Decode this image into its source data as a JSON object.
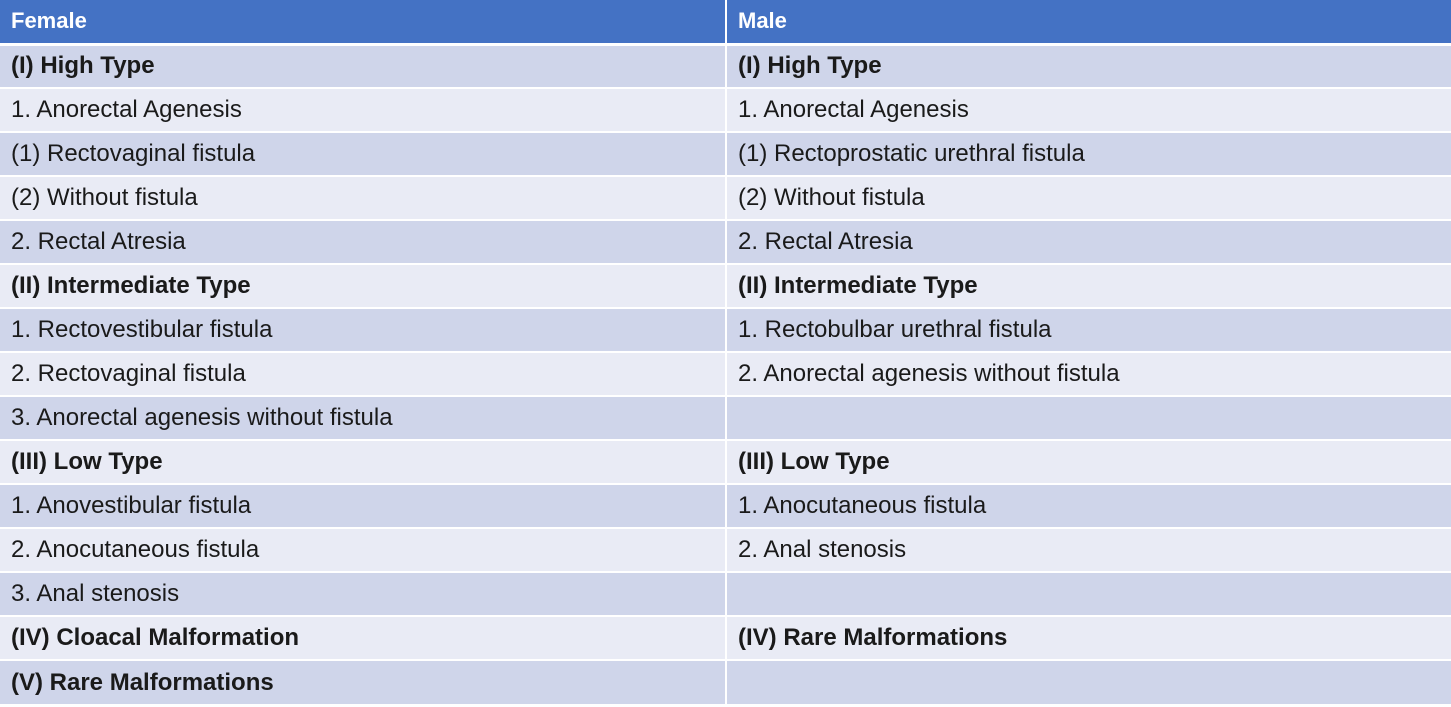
{
  "header": {
    "female": "Female",
    "male": "Male"
  },
  "rows": [
    {
      "female": "(I) High Type",
      "male": "(I) High Type"
    },
    {
      "female": "1. Anorectal Agenesis",
      "male": "1. Anorectal Agenesis"
    },
    {
      "female": "(1) Rectovaginal fistula",
      "male": "(1) Rectoprostatic urethral fistula"
    },
    {
      "female": "(2) Without fistula",
      "male": "(2) Without fistula"
    },
    {
      "female": "2. Rectal Atresia",
      "male": "2. Rectal Atresia"
    },
    {
      "female": "(II) Intermediate Type",
      "male": "(II) Intermediate Type"
    },
    {
      "female": "1. Rectovestibular fistula",
      "male": "1. Rectobulbar urethral fistula"
    },
    {
      "female": "2. Rectovaginal fistula",
      "male": "2. Anorectal agenesis without fistula"
    },
    {
      "female": "3. Anorectal agenesis without fistula",
      "male": ""
    },
    {
      "female": "(III) Low Type",
      "male": "(III) Low Type"
    },
    {
      "female": "1. Anovestibular fistula",
      "male": "1. Anocutaneous fistula"
    },
    {
      "female": "2. Anocutaneous fistula",
      "male": "2. Anal stenosis"
    },
    {
      "female": "3. Anal stenosis",
      "male": ""
    },
    {
      "female": "(IV) Cloacal Malformation",
      "male": "(IV) Rare Malformations"
    },
    {
      "female": "(V) Rare Malformations",
      "male": ""
    }
  ],
  "colors": {
    "header_bg": "#4472c4",
    "row_dark": "#cfd5ea",
    "row_light": "#e9ebf5",
    "header_text": "#ffffff"
  }
}
